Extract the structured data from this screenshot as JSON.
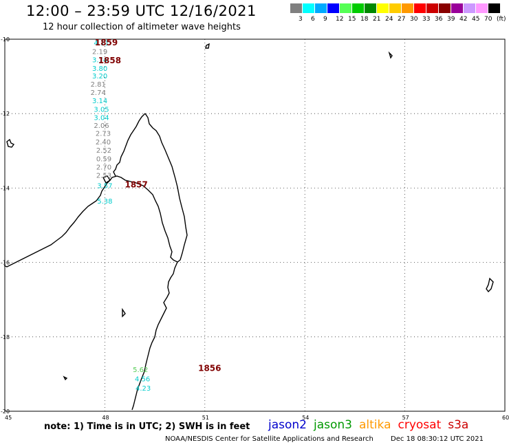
{
  "header": {
    "title": "12:00 – 23:59 UTC 12/16/2021",
    "subtitle": "12 hour collection of altimeter wave heights"
  },
  "legend": {
    "unit": "(ft)",
    "colors": [
      "#808080",
      "#00ffff",
      "#00aaff",
      "#0000ff",
      "#55ff55",
      "#00cc00",
      "#008800",
      "#ffff00",
      "#ffcc00",
      "#ff9900",
      "#ff0000",
      "#cc0000",
      "#880000",
      "#990099",
      "#cc99ff",
      "#ff99ff",
      "#000000"
    ],
    "labels": [
      "3",
      "6",
      "9",
      "12",
      "15",
      "18",
      "21",
      "24",
      "27",
      "30",
      "33",
      "36",
      "39",
      "42",
      "45",
      "70"
    ]
  },
  "map": {
    "lon_labels": [
      "45",
      "48",
      "51",
      "54",
      "57",
      "60"
    ],
    "lat_labels": [
      "-10",
      "-12",
      "-14",
      "-16",
      "-18",
      "-20"
    ],
    "extent": {
      "lon": [
        45,
        60
      ],
      "lat": [
        -20,
        -10
      ]
    }
  },
  "observations": [
    {
      "v": "4.11",
      "lon": 47.9,
      "lat": -10.17,
      "c": "#00cccc"
    },
    {
      "v": "2.19",
      "lon": 47.85,
      "lat": -10.4,
      "c": "#808080"
    },
    {
      "v": "3.74",
      "lon": 47.85,
      "lat": -10.62,
      "c": "#00cccc"
    },
    {
      "v": "3.80",
      "lon": 47.85,
      "lat": -10.85,
      "c": "#00cccc"
    },
    {
      "v": "3.20",
      "lon": 47.85,
      "lat": -11.05,
      "c": "#00cccc"
    },
    {
      "v": "2.81",
      "lon": 47.8,
      "lat": -11.28,
      "c": "#808080"
    },
    {
      "v": "2.74",
      "lon": 47.8,
      "lat": -11.5,
      "c": "#808080"
    },
    {
      "v": "3.14",
      "lon": 47.85,
      "lat": -11.72,
      "c": "#00cccc"
    },
    {
      "v": "3.05",
      "lon": 47.9,
      "lat": -11.95,
      "c": "#00cccc"
    },
    {
      "v": "3.04",
      "lon": 47.9,
      "lat": -12.17,
      "c": "#00cccc"
    },
    {
      "v": "2.06",
      "lon": 47.9,
      "lat": -12.38,
      "c": "#808080"
    },
    {
      "v": "2.73",
      "lon": 47.95,
      "lat": -12.6,
      "c": "#808080"
    },
    {
      "v": "2.40",
      "lon": 47.95,
      "lat": -12.83,
      "c": "#808080"
    },
    {
      "v": "2.52",
      "lon": 47.97,
      "lat": -13.05,
      "c": "#808080"
    },
    {
      "v": "0.59",
      "lon": 47.97,
      "lat": -13.28,
      "c": "#808080"
    },
    {
      "v": "2.70",
      "lon": 47.97,
      "lat": -13.5,
      "c": "#808080"
    },
    {
      "v": "2.53",
      "lon": 47.97,
      "lat": -13.72,
      "c": "#808080"
    },
    {
      "v": "3.57",
      "lon": 48.0,
      "lat": -14.0,
      "c": "#00cccc"
    },
    {
      "v": "5.38",
      "lon": 48.0,
      "lat": -14.42,
      "c": "#00cccc"
    },
    {
      "v": "5.62",
      "lon": 49.07,
      "lat": -18.95,
      "c": "#55cc55"
    },
    {
      "v": "4.56",
      "lon": 49.13,
      "lat": -19.2,
      "c": "#00cccc"
    },
    {
      "v": "4.23",
      "lon": 49.15,
      "lat": -19.45,
      "c": "#00cccc"
    }
  ],
  "pass_times": [
    {
      "t": "1859",
      "lon": 47.7,
      "lat": -10.17
    },
    {
      "t": "1858",
      "lon": 47.8,
      "lat": -10.65
    },
    {
      "t": "1857",
      "lon": 48.6,
      "lat": -13.98
    },
    {
      "t": "1856",
      "lon": 50.8,
      "lat": -18.92
    }
  ],
  "note": "note:  1) Time is in UTC;  2) SWH is in feet",
  "satellites": [
    {
      "name": "jason2",
      "color": "#0000cc"
    },
    {
      "name": "jason3",
      "color": "#009900"
    },
    {
      "name": "altika",
      "color": "#ff9900"
    },
    {
      "name": "cryosat",
      "color": "#ff0000"
    },
    {
      "name": "s3a",
      "color": "#cc0000"
    }
  ],
  "footer": {
    "credit": "NOAA/NESDIS Center for Satellite Applications and Research",
    "timestamp": "Dec 18 08:30:12 UTC 2021"
  }
}
